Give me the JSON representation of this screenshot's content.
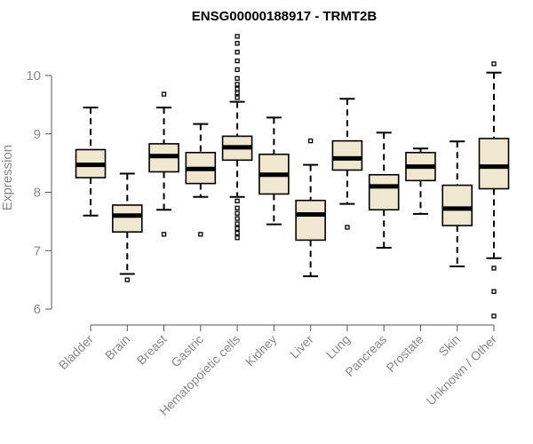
{
  "chart_data": {
    "type": "boxplot",
    "title": "ENSG00000188917 - TRMT2B",
    "xlabel": "",
    "ylabel": "Expression",
    "ylim": [
      5.75,
      10.9
    ],
    "yticks": [
      6,
      7,
      8,
      9,
      10
    ],
    "grid": false,
    "categories": [
      "Bladder",
      "Brain",
      "Breast",
      "Gastric",
      "Hematopoietic cells",
      "Kidney",
      "Liver",
      "Lung",
      "Pancreas",
      "Prostate",
      "Skin",
      "Unknown / Other"
    ],
    "series": [
      {
        "name": "Bladder",
        "whisker_low": 7.6,
        "q1": 8.25,
        "median": 8.47,
        "q3": 8.73,
        "whisker_high": 9.45,
        "outliers": []
      },
      {
        "name": "Brain",
        "whisker_low": 6.6,
        "q1": 7.32,
        "median": 7.6,
        "q3": 7.78,
        "whisker_high": 8.32,
        "outliers": [
          6.5
        ]
      },
      {
        "name": "Breast",
        "whisker_low": 7.7,
        "q1": 8.35,
        "median": 8.62,
        "q3": 8.83,
        "whisker_high": 9.45,
        "outliers": [
          7.28,
          9.68
        ]
      },
      {
        "name": "Gastric",
        "whisker_low": 7.92,
        "q1": 8.15,
        "median": 8.4,
        "q3": 8.68,
        "whisker_high": 9.17,
        "outliers": [
          7.28
        ]
      },
      {
        "name": "Hematopoietic cells",
        "whisker_low": 7.92,
        "q1": 8.55,
        "median": 8.77,
        "q3": 8.96,
        "whisker_high": 9.55,
        "outliers": [
          7.22,
          7.3,
          7.38,
          7.46,
          7.55,
          7.64,
          7.73,
          7.85,
          9.62,
          9.7,
          9.77,
          9.85,
          9.95,
          10.1,
          10.25,
          10.4,
          10.55,
          10.67
        ]
      },
      {
        "name": "Kidney",
        "whisker_low": 7.45,
        "q1": 7.97,
        "median": 8.3,
        "q3": 8.65,
        "whisker_high": 9.28,
        "outliers": []
      },
      {
        "name": "Liver",
        "whisker_low": 6.56,
        "q1": 7.18,
        "median": 7.62,
        "q3": 7.86,
        "whisker_high": 8.47,
        "outliers": [
          8.88
        ]
      },
      {
        "name": "Lung",
        "whisker_low": 7.8,
        "q1": 8.38,
        "median": 8.58,
        "q3": 8.88,
        "whisker_high": 9.6,
        "outliers": [
          7.4
        ]
      },
      {
        "name": "Pancreas",
        "whisker_low": 7.05,
        "q1": 7.7,
        "median": 8.1,
        "q3": 8.3,
        "whisker_high": 9.02,
        "outliers": []
      },
      {
        "name": "Prostate",
        "whisker_low": 7.63,
        "q1": 8.2,
        "median": 8.44,
        "q3": 8.68,
        "whisker_high": 8.75,
        "outliers": []
      },
      {
        "name": "Skin",
        "whisker_low": 6.73,
        "q1": 7.43,
        "median": 7.72,
        "q3": 8.12,
        "whisker_high": 8.87,
        "outliers": []
      },
      {
        "name": "Unknown / Other",
        "whisker_low": 6.87,
        "q1": 8.06,
        "median": 8.44,
        "q3": 8.92,
        "whisker_high": 10.05,
        "outliers": [
          5.88,
          6.3,
          6.7,
          10.2
        ]
      }
    ]
  }
}
